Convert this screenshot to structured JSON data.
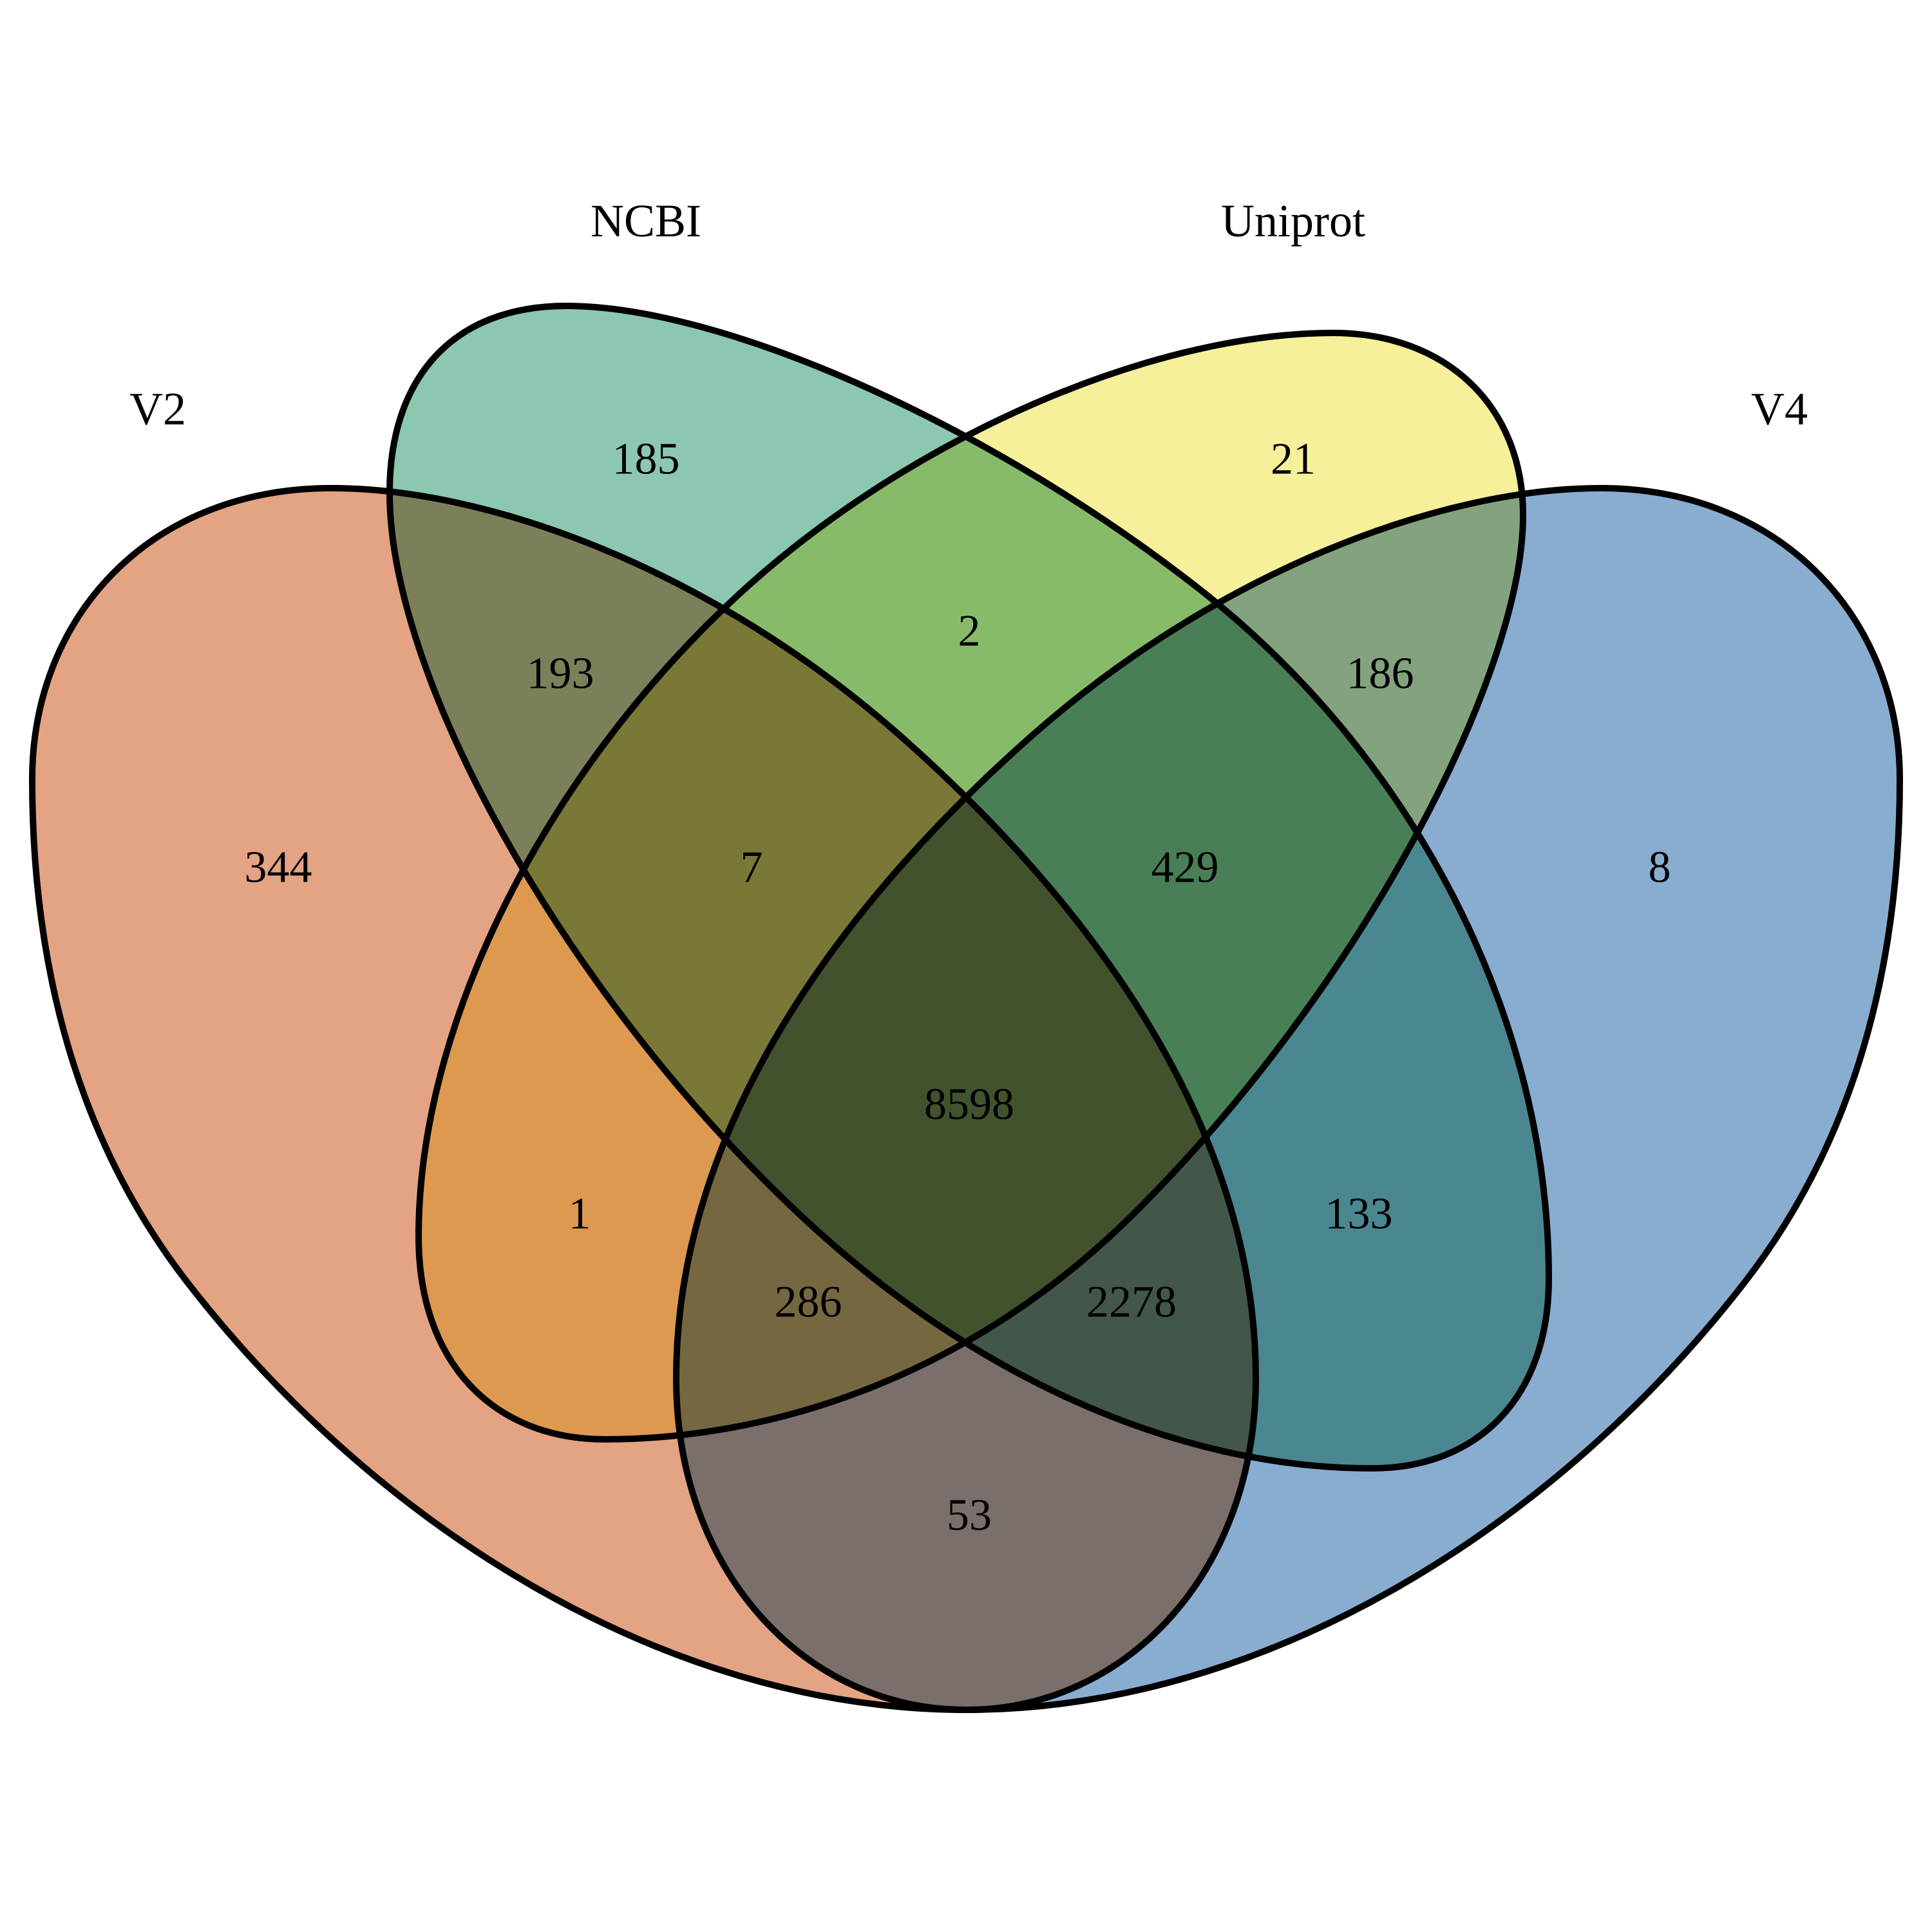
{
  "diagram": {
    "type": "venn-4-set",
    "sets": [
      {
        "id": "v2",
        "label": "V2",
        "color": "#E4A382"
      },
      {
        "id": "ncbi",
        "label": "NCBI",
        "color": "#8CC7B0"
      },
      {
        "id": "uniprot",
        "label": "Uniprot",
        "color": "#F6F09A"
      },
      {
        "id": "v4",
        "label": "V4",
        "color": "#88ADD1"
      }
    ],
    "regions": [
      {
        "sets": [
          "v2"
        ],
        "count": "344"
      },
      {
        "sets": [
          "ncbi"
        ],
        "count": "185"
      },
      {
        "sets": [
          "uniprot"
        ],
        "count": "21"
      },
      {
        "sets": [
          "v4"
        ],
        "count": "8"
      },
      {
        "sets": [
          "v2",
          "ncbi"
        ],
        "count": "193"
      },
      {
        "sets": [
          "ncbi",
          "uniprot"
        ],
        "count": "2"
      },
      {
        "sets": [
          "uniprot",
          "v4"
        ],
        "count": "186"
      },
      {
        "sets": [
          "v2",
          "ncbi",
          "uniprot"
        ],
        "count": "7"
      },
      {
        "sets": [
          "ncbi",
          "uniprot",
          "v4"
        ],
        "count": "429"
      },
      {
        "sets": [
          "v2",
          "uniprot"
        ],
        "count": "1"
      },
      {
        "sets": [
          "v2",
          "ncbi",
          "uniprot",
          "v4"
        ],
        "count": "8598"
      },
      {
        "sets": [
          "ncbi",
          "v4"
        ],
        "count": "133"
      },
      {
        "sets": [
          "v2",
          "uniprot",
          "v4"
        ],
        "count": "286"
      },
      {
        "sets": [
          "v2",
          "ncbi",
          "v4"
        ],
        "count": "2278"
      },
      {
        "sets": [
          "v2",
          "v4"
        ],
        "count": "53"
      }
    ]
  }
}
